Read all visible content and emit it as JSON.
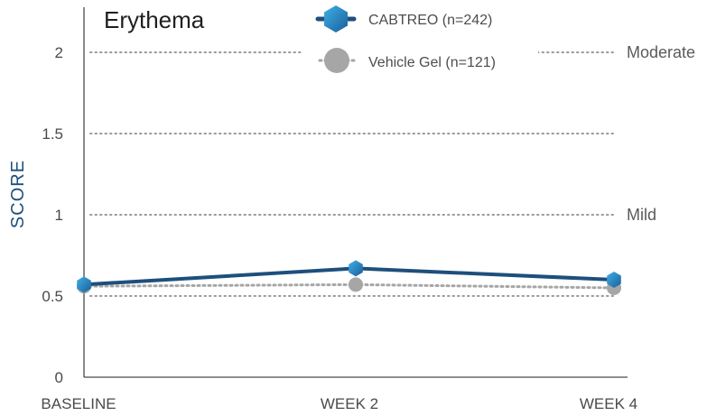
{
  "chart_data": {
    "type": "line",
    "title": "Erythema",
    "ylabel": "SCORE",
    "xlabel": "",
    "categories": [
      "BASELINE",
      "WEEK 2",
      "WEEK 4"
    ],
    "ylim": [
      0,
      2.2
    ],
    "yticks": [
      "0",
      "0.5",
      "1",
      "1.5",
      "2"
    ],
    "reference_lines": [
      {
        "value": 2,
        "label": "Moderate"
      },
      {
        "value": 1,
        "label": "Mild"
      },
      {
        "value": 1.5,
        "label": ""
      },
      {
        "value": 0.5,
        "label": ""
      }
    ],
    "series": [
      {
        "name": "CABTREO (n=242)",
        "values": [
          0.57,
          0.67,
          0.6
        ],
        "color": "#1d4f7c",
        "marker_color": "#1e88c8",
        "marker": "hexagon"
      },
      {
        "name": "Vehicle Gel (n=121)",
        "values": [
          0.56,
          0.57,
          0.55
        ],
        "color": "#a6a6a6",
        "marker_color": "#a6a6a6",
        "marker": "circle",
        "dashed": true
      }
    ],
    "legend_position": "top-center",
    "grid": "dotted"
  }
}
